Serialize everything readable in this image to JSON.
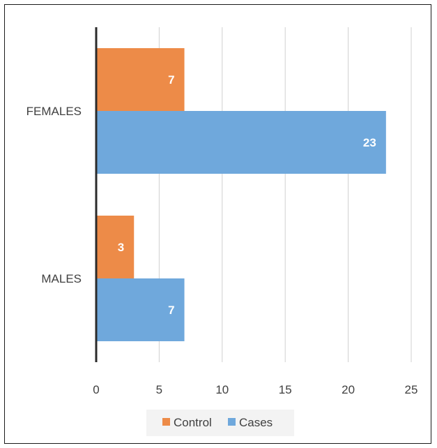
{
  "chart_data": {
    "type": "bar",
    "orientation": "horizontal",
    "categories": [
      "FEMALES",
      "MALES"
    ],
    "series": [
      {
        "name": "Control",
        "values": [
          7,
          3
        ],
        "color": "#ED8B48"
      },
      {
        "name": "Cases",
        "values": [
          23,
          7
        ],
        "color": "#6FA8DC"
      }
    ],
    "xlim": [
      0,
      25
    ],
    "xticks": [
      "0",
      "5",
      "10",
      "15",
      "20",
      "25"
    ],
    "grid": true,
    "legend_position": "bottom",
    "legend": [
      {
        "label": "Control",
        "color": "#ED8B48"
      },
      {
        "label": "Cases",
        "color": "#6FA8DC"
      }
    ]
  }
}
